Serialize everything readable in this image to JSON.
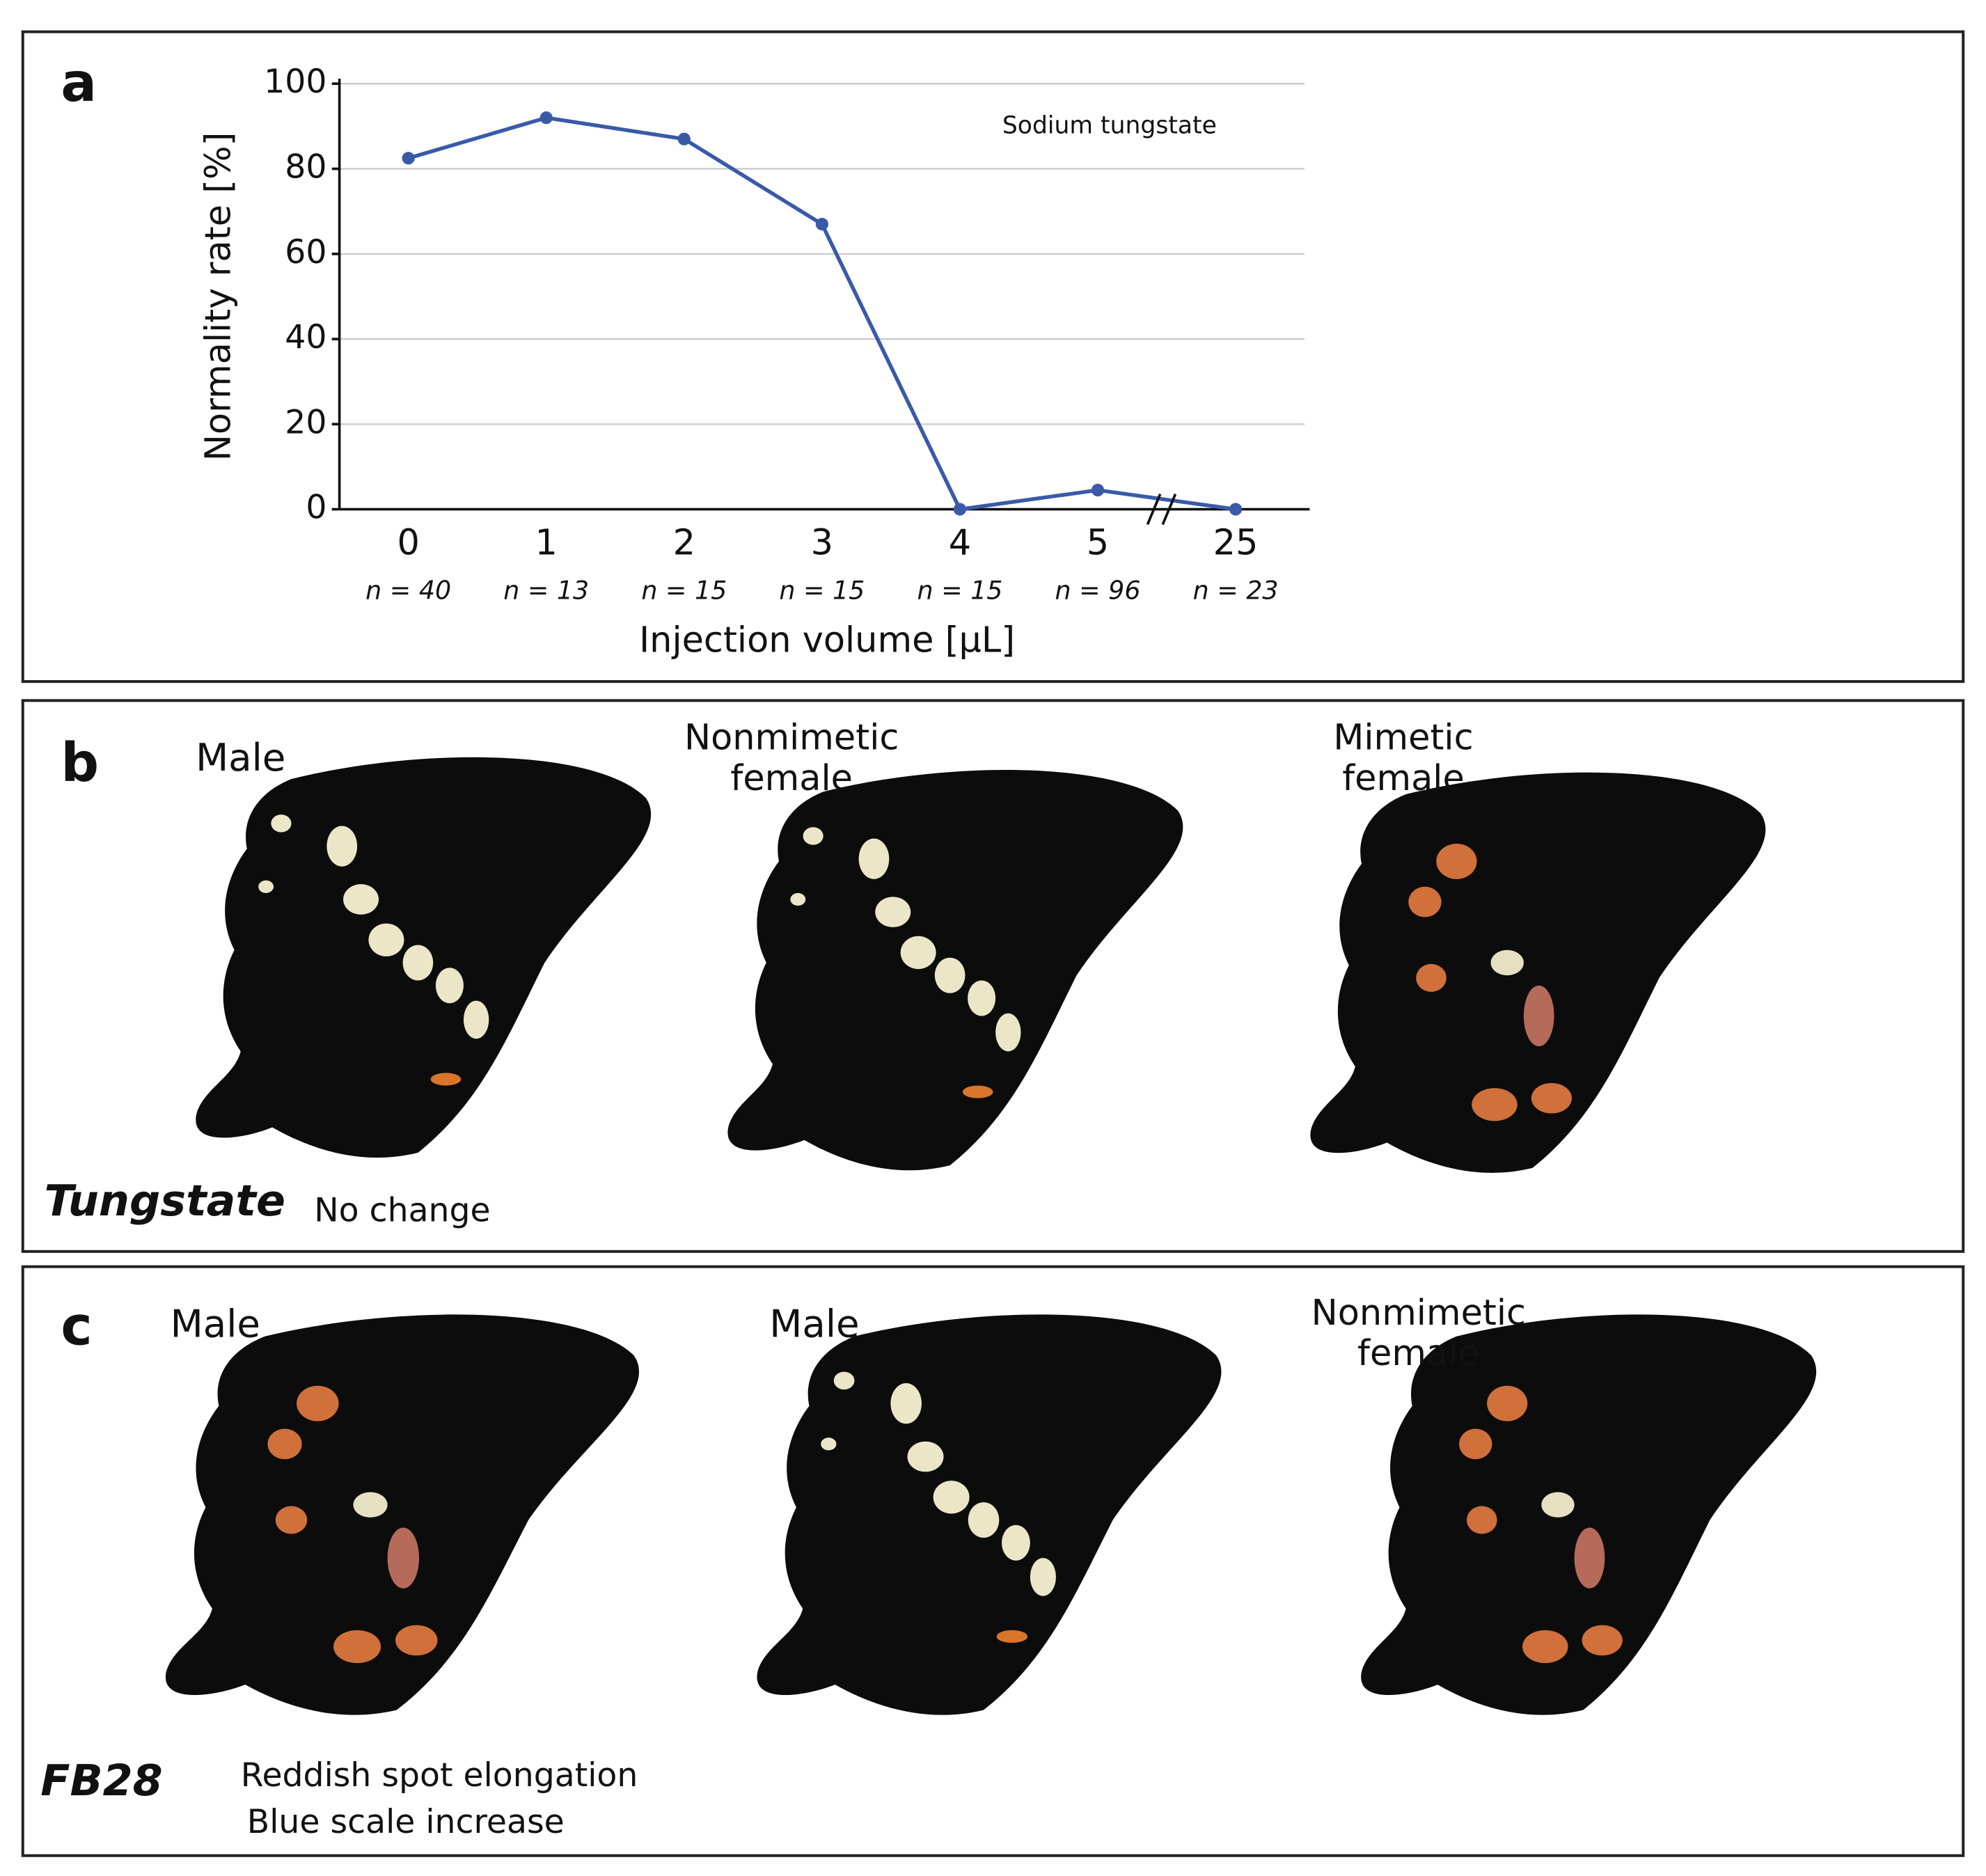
{
  "chart_data": {
    "type": "line",
    "panel": "a",
    "annotation": "Sodium tungstate",
    "x_label": "Injection volume [µL]",
    "y_label": "Normality rate [%]",
    "categories": [
      "0",
      "1",
      "2",
      "3",
      "4",
      "5",
      "25"
    ],
    "sample_sizes": [
      "n = 40",
      "n = 13",
      "n = 15",
      "n = 15",
      "n = 15",
      "n = 96",
      "n = 23"
    ],
    "series": [
      {
        "name": "Sodium tungstate",
        "color": "#3a5aa8",
        "values": [
          82.5,
          92,
          87,
          67,
          0,
          4.5,
          0
        ]
      }
    ],
    "ylim": [
      0,
      100
    ],
    "yticks": [
      0,
      20,
      40,
      60,
      80,
      100
    ],
    "grid": true
  },
  "panels": [
    {
      "letter": "b",
      "labels": [
        "Male",
        "Nonmimetic female",
        "Mimetic female"
      ],
      "treatment": "Tungstate",
      "notes": [
        "No change"
      ]
    },
    {
      "letter": "c",
      "labels": [
        "Male",
        "Male",
        "Nonmimetic female"
      ],
      "treatment": "FB28",
      "notes": [
        "Reddish spot elongation",
        "Blue scale increase"
      ]
    }
  ]
}
